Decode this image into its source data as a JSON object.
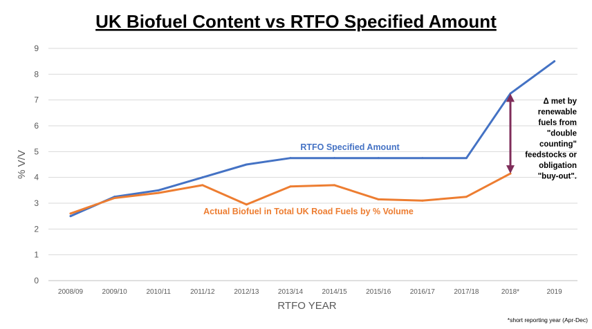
{
  "chart_data": {
    "type": "line",
    "title": "UK Biofuel Content vs RTFO Specified Amount",
    "xlabel": "RTFO YEAR",
    "ylabel": "% V/V",
    "ylim": [
      0,
      9
    ],
    "yticks": [
      0,
      1,
      2,
      3,
      4,
      5,
      6,
      7,
      8,
      9
    ],
    "categories": [
      "2008/09",
      "2009/10",
      "2010/11",
      "2011/12",
      "2012/13",
      "2013/14",
      "2014/15",
      "2015/16",
      "2016/17",
      "2017/18",
      "2018*",
      "2019"
    ],
    "grid": true,
    "series": [
      {
        "name": "RTFO Specified Amount",
        "color": "#4472C4",
        "values": [
          2.5,
          3.25,
          3.5,
          4.0,
          4.5,
          4.75,
          4.75,
          4.75,
          4.75,
          4.75,
          7.25,
          8.5
        ]
      },
      {
        "name": "Actual Biofuel in Total UK Road Fuels by % Volume",
        "color": "#ED7D31",
        "values": [
          2.6,
          3.2,
          3.4,
          3.7,
          2.95,
          3.65,
          3.7,
          3.15,
          3.1,
          3.25,
          4.15,
          null
        ]
      }
    ],
    "annotations": [
      "Δ met by",
      "renewable",
      "fuels from",
      "\"double",
      "counting\"",
      "feedstocks or",
      "obligation",
      "\"buy-out\"."
    ],
    "arrow_color": "#7F2D5A",
    "footnote": "*short reporting year (Apr-Dec)"
  }
}
